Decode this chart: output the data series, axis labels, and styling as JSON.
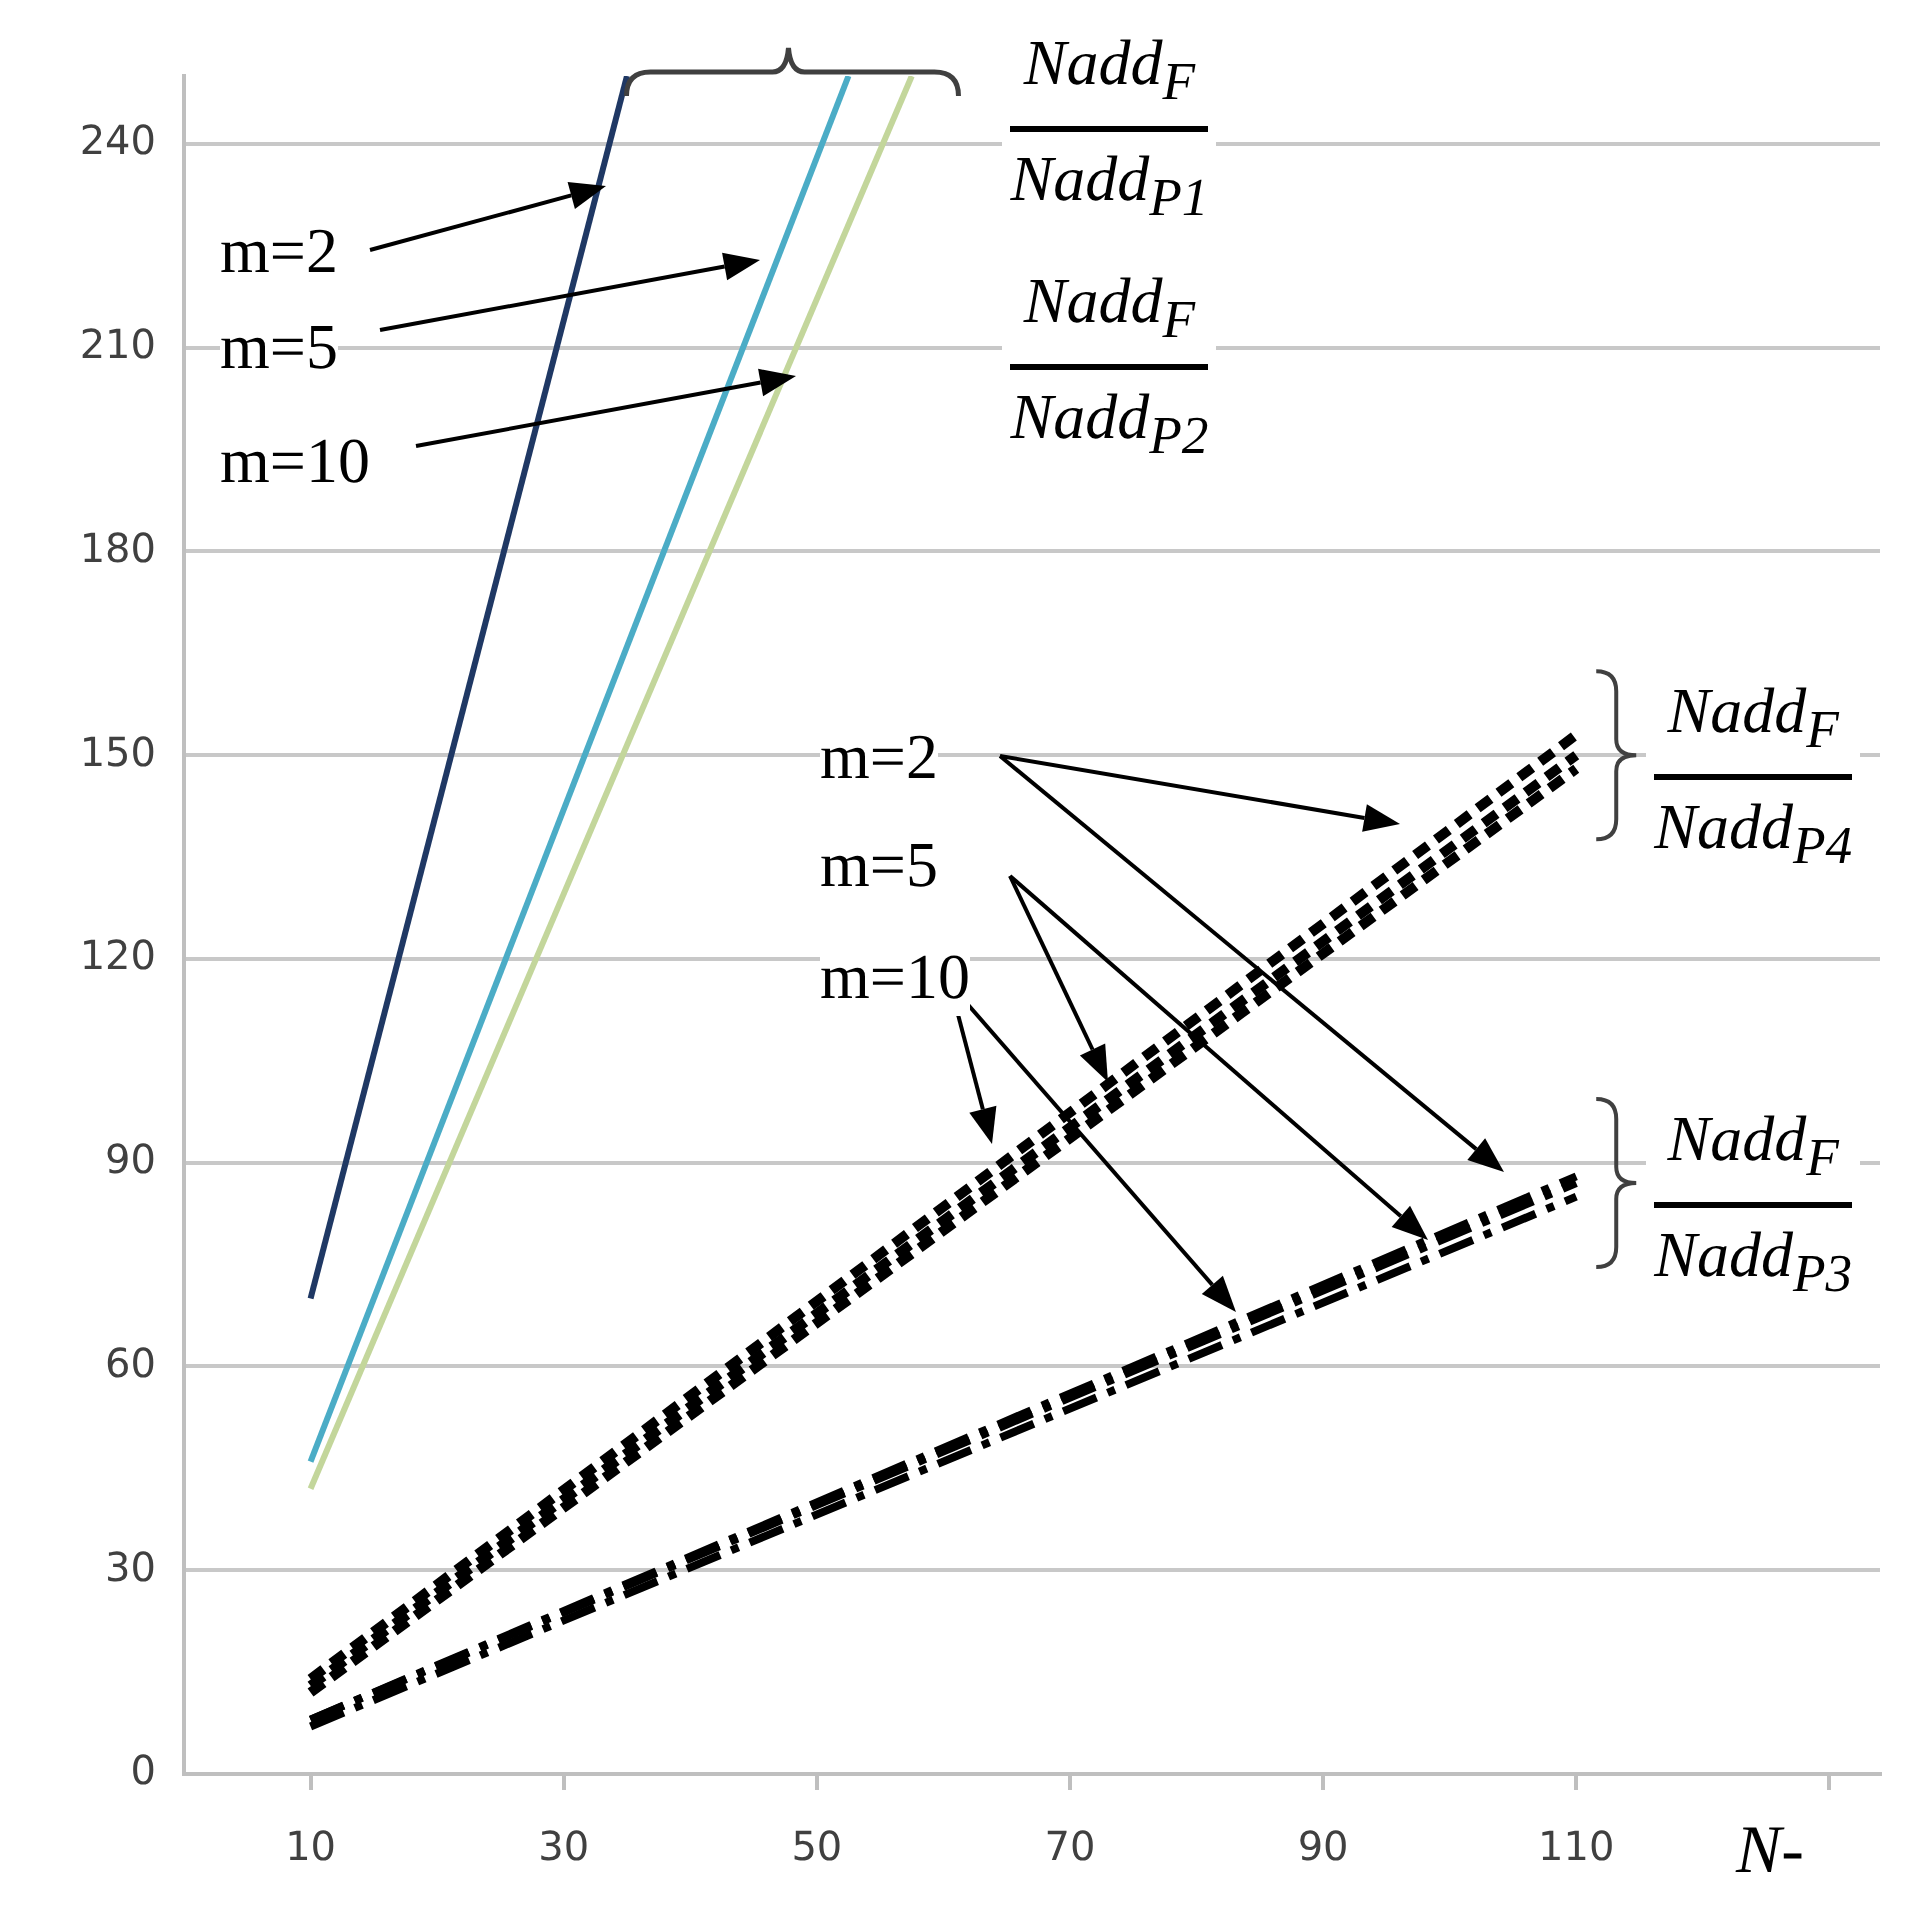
{
  "chart_data": {
    "type": "line",
    "xlabel": "N-",
    "xlim": [
      0,
      134
    ],
    "xticks": [
      10,
      30,
      50,
      70,
      90,
      110,
      {
        "value": 130,
        "label": null
      }
    ],
    "ylim": [
      0,
      250
    ],
    "yticks": [
      0,
      30,
      60,
      90,
      120,
      150,
      180,
      210,
      240
    ],
    "grid": "y",
    "legend": false,
    "marker": "none",
    "series": [
      {
        "color": "#1f3864",
        "x": [
          10,
          35
        ],
        "values": [
          70,
          250
        ],
        "line_style": "solid"
      },
      {
        "color": "#4bacc6",
        "x": [
          10,
          52.5
        ],
        "values": [
          46,
          250
        ],
        "line_style": "solid"
      },
      {
        "color": "#c3d69b",
        "x": [
          10,
          57.5
        ],
        "values": [
          42,
          250
        ],
        "line_style": "solid"
      },
      {
        "color": "#000000",
        "x": [
          10,
          110
        ],
        "values": [
          14,
          153
        ],
        "line_style": "dotted"
      },
      {
        "color": "#000000",
        "x": [
          10,
          110
        ],
        "values": [
          13,
          150
        ],
        "line_style": "dotted"
      },
      {
        "color": "#000000",
        "x": [
          10,
          110
        ],
        "values": [
          12,
          148
        ],
        "line_style": "dotted"
      },
      {
        "color": "#000000",
        "x": [
          10,
          110
        ],
        "values": [
          8,
          88
        ],
        "line_style": "dashed"
      },
      {
        "color": "#000000",
        "x": [
          10,
          110
        ],
        "values": [
          8,
          87
        ],
        "line_style": "dashed"
      },
      {
        "color": "#000000",
        "x": [
          10,
          110
        ],
        "values": [
          7,
          85
        ],
        "line_style": "dashed"
      }
    ],
    "annotations": [
      "m=2",
      "m=5",
      "m=10",
      "m=2",
      "m=5",
      "m=10",
      {
        "text": "Nadd$_{F}$",
        "x": 52.5,
        "y": 250
      },
      {
        "text": "Nadd$_{P1}$",
        "x": 52.5,
        "y": 250
      },
      "Nadd$_{F}$",
      "Nadd$_{P2}$",
      "Nadd$_{F}$",
      "Nadd$_{P4}$",
      "Nadd$_{F}$",
      "Nadd$_{P3}$"
    ]
  }
}
